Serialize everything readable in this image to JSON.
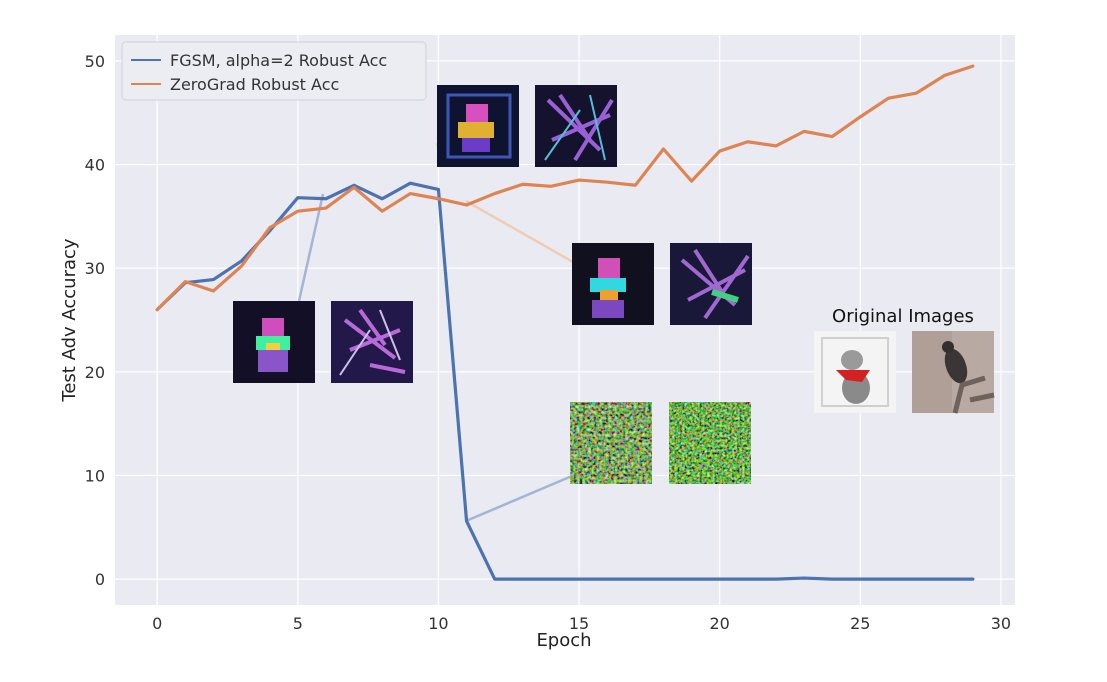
{
  "chart_data": {
    "type": "line",
    "xlabel": "Epoch",
    "ylabel": "Test Adv Accuracy",
    "xlim": [
      -1.5,
      30.5
    ],
    "ylim": [
      -2.5,
      52.5
    ],
    "xticks": [
      0,
      5,
      10,
      15,
      20,
      25,
      30
    ],
    "yticks": [
      0,
      10,
      20,
      30,
      40,
      50
    ],
    "grid": true,
    "legend": "top-left",
    "x": [
      0,
      1,
      2,
      3,
      4,
      5,
      6,
      7,
      8,
      9,
      10,
      11,
      12,
      13,
      14,
      15,
      16,
      17,
      18,
      19,
      20,
      21,
      22,
      23,
      24,
      25,
      26,
      27,
      28,
      29
    ],
    "series": [
      {
        "name": "FGSM, alpha=2 Robust Acc",
        "color": "#4c72b0",
        "values": [
          26.0,
          28.6,
          28.9,
          30.7,
          33.6,
          36.8,
          36.7,
          38.0,
          36.7,
          38.2,
          37.6,
          5.6,
          0,
          0,
          0,
          0,
          0,
          0,
          0,
          0,
          0,
          0,
          0,
          0.1,
          0,
          0,
          0,
          0,
          0,
          0
        ]
      },
      {
        "name": "ZeroGrad Robust Acc",
        "color": "#dd8452",
        "values": [
          26.0,
          28.7,
          27.8,
          30.2,
          33.9,
          35.5,
          35.8,
          37.8,
          35.5,
          37.2,
          36.7,
          36.1,
          37.2,
          38.1,
          37.9,
          38.5,
          38.3,
          38.0,
          41.5,
          38.4,
          41.3,
          42.2,
          41.8,
          43.2,
          42.7,
          44.6,
          46.4,
          46.9,
          48.6,
          49.5
        ]
      }
    ],
    "annotations": [
      {
        "text": "Original Images"
      }
    ]
  }
}
